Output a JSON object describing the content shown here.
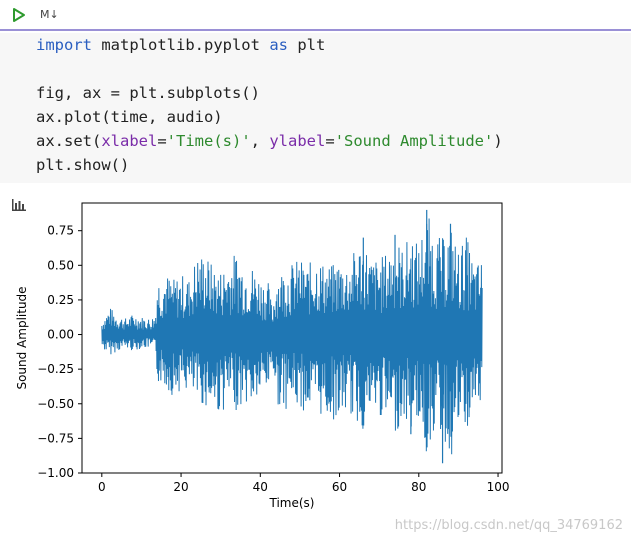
{
  "toolbar": {
    "run_icon": "play-icon",
    "language_badge": "M↓"
  },
  "code": {
    "lines": [
      [
        {
          "t": "import",
          "c": "kw"
        },
        {
          "t": " matplotlib.pyplot ",
          "c": ""
        },
        {
          "t": "as",
          "c": "kw"
        },
        {
          "t": " plt",
          "c": ""
        }
      ],
      [],
      [
        {
          "t": "fig, ax = plt.subplots()",
          "c": ""
        }
      ],
      [
        {
          "t": "ax.plot(time, audio)",
          "c": ""
        }
      ],
      [
        {
          "t": "ax.set(",
          "c": ""
        },
        {
          "t": "xlabel",
          "c": "param"
        },
        {
          "t": "=",
          "c": ""
        },
        {
          "t": "'Time(s)'",
          "c": "str"
        },
        {
          "t": ", ",
          "c": ""
        },
        {
          "t": "ylabel",
          "c": "param"
        },
        {
          "t": "=",
          "c": ""
        },
        {
          "t": "'Sound Amplitude'",
          "c": "str"
        },
        {
          "t": ")",
          "c": ""
        }
      ],
      [
        {
          "t": "plt.show()",
          "c": ""
        }
      ]
    ]
  },
  "output": {
    "icon": "bar-chart-icon"
  },
  "chart_data": {
    "type": "line",
    "title": "",
    "xlabel": "Time(s)",
    "ylabel": "Sound Amplitude",
    "xlim": [
      -5,
      101
    ],
    "ylim": [
      -1.0,
      0.95
    ],
    "xticks": [
      "0",
      "20",
      "40",
      "60",
      "80",
      "100"
    ],
    "xtick_values": [
      0,
      20,
      40,
      60,
      80,
      100
    ],
    "yticks": [
      "0.75",
      "0.50",
      "0.25",
      "0.00",
      "−0.25",
      "−0.50",
      "−0.75",
      "−1.00"
    ],
    "ytick_values": [
      0.75,
      0.5,
      0.25,
      0.0,
      -0.25,
      -0.5,
      -0.75,
      -1.0
    ],
    "grid": false,
    "line_color": "#1f77b4",
    "series": [
      {
        "x": [
          0,
          2,
          4,
          6,
          8,
          10,
          12,
          13.5,
          14,
          16,
          18,
          20,
          22,
          24,
          26,
          28,
          30,
          32,
          34,
          36,
          38,
          40,
          42,
          43,
          44,
          46,
          48,
          50,
          52,
          54,
          56,
          58,
          60,
          62,
          64,
          66,
          68,
          70,
          72,
          74,
          76,
          78,
          80,
          82,
          84,
          86,
          88,
          90,
          92,
          94,
          96
        ],
        "y_max": [
          0.1,
          0.2,
          0.14,
          0.12,
          0.15,
          0.13,
          0.12,
          0.14,
          0.42,
          0.45,
          0.4,
          0.44,
          0.41,
          0.58,
          0.6,
          0.5,
          0.47,
          0.55,
          0.6,
          0.52,
          0.5,
          0.42,
          0.38,
          0.2,
          0.45,
          0.48,
          0.52,
          0.55,
          0.5,
          0.58,
          0.52,
          0.5,
          0.55,
          0.52,
          0.62,
          0.7,
          0.55,
          0.55,
          0.6,
          0.72,
          0.62,
          0.75,
          0.65,
          0.9,
          0.72,
          0.7,
          0.8,
          0.62,
          0.72,
          0.5,
          0.55
        ],
        "y_min": [
          -0.1,
          -0.15,
          -0.12,
          -0.1,
          -0.12,
          -0.1,
          -0.1,
          -0.12,
          -0.35,
          -0.38,
          -0.45,
          -0.4,
          -0.42,
          -0.5,
          -0.52,
          -0.55,
          -0.58,
          -0.5,
          -0.55,
          -0.5,
          -0.52,
          -0.45,
          -0.4,
          -0.2,
          -0.5,
          -0.55,
          -0.5,
          -0.55,
          -0.56,
          -0.58,
          -0.6,
          -0.62,
          -0.62,
          -0.55,
          -0.65,
          -0.7,
          -0.58,
          -0.6,
          -0.65,
          -0.72,
          -0.62,
          -0.7,
          -0.62,
          -0.9,
          -0.68,
          -0.75,
          -0.93,
          -0.68,
          -0.75,
          -0.52,
          -0.55
        ]
      }
    ]
  },
  "watermark": "https://blog.csdn.net/qq_34769162"
}
